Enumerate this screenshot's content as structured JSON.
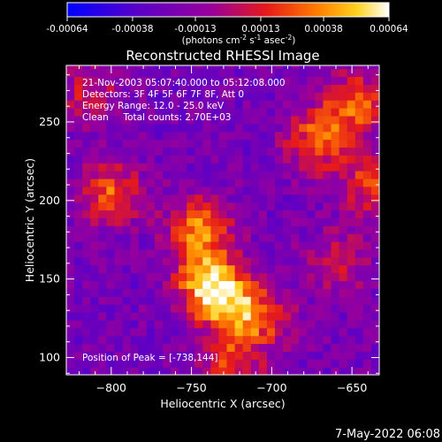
{
  "colorbar": {
    "ticks": [
      "-0.00064",
      "-0.00038",
      "-0.00013",
      "0.00013",
      "0.00038",
      "0.00064"
    ],
    "units_main": "(photons cm",
    "units_exp1": "-2",
    "units_mid": " s",
    "units_exp2": "-1",
    "units_end": " asec",
    "units_exp3": "-2",
    "units_close": ")"
  },
  "chart_data": {
    "type": "heatmap",
    "title": "Reconstructed RHESSI Image",
    "xlabel": "Heliocentric X (arcsec)",
    "ylabel": "Heliocentric Y (arcsec)",
    "xlim": [
      -828,
      -633
    ],
    "ylim": [
      89,
      286
    ],
    "xticks": [
      -800,
      -750,
      -700,
      -650
    ],
    "xtick_labels": [
      "−800",
      "−750",
      "−700",
      "−650"
    ],
    "yticks": [
      100,
      150,
      200,
      250
    ],
    "ytick_labels": [
      "100",
      "150",
      "200",
      "250"
    ],
    "colorbar_range": [
      -0.00064,
      0.00064
    ],
    "colormap": "rhessi (blue–purple–red–orange–yellow–white)",
    "peak_position": [
      -738,
      144
    ],
    "info_lines": [
      "21-Nov-2003 05:07:40.000 to 05:12:08.000",
      "Detectors: 3F 4F 5F 6F 7F 8F, Att 0",
      "Energy Range: 12.0 - 25.0 keV",
      "Clean     Total counts: 2.70E+03"
    ],
    "peak_label": "Position of Peak = [-738,144]",
    "sources": [
      {
        "x": -740,
        "y": 148,
        "relative_intensity": 1.0
      },
      {
        "x": -745,
        "y": 182,
        "relative_intensity": 0.85
      },
      {
        "x": -725,
        "y": 132,
        "relative_intensity": 0.75
      },
      {
        "x": -800,
        "y": 205,
        "relative_intensity": 0.7
      },
      {
        "x": -672,
        "y": 238,
        "relative_intensity": 0.7
      },
      {
        "x": -648,
        "y": 262,
        "relative_intensity": 0.75
      },
      {
        "x": -638,
        "y": 210,
        "relative_intensity": 0.6
      },
      {
        "x": -725,
        "y": 95,
        "relative_intensity": 0.55
      },
      {
        "x": -705,
        "y": 125,
        "relative_intensity": 0.5
      },
      {
        "x": -812,
        "y": 268,
        "relative_intensity": 0.45
      },
      {
        "x": -660,
        "y": 160,
        "relative_intensity": 0.45
      }
    ]
  },
  "footer_date": "7-May-2022 06:08"
}
